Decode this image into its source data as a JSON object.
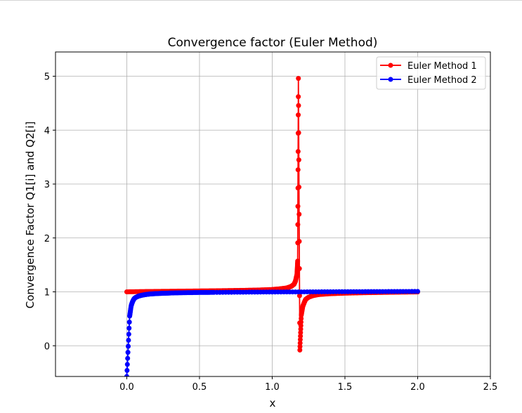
{
  "chart_data": {
    "type": "line",
    "title": "Convergence factor (Euler Method)",
    "xlabel": "x",
    "ylabel": "Convergence Factor Q1[i] and Q2[i]",
    "xlim": [
      -0.49,
      2.5
    ],
    "ylim": [
      -0.57,
      5.45
    ],
    "xticks": [
      0.0,
      0.5,
      1.0,
      1.5,
      2.0,
      2.5
    ],
    "xtick_labels": [
      "0.0",
      "0.5",
      "1.0",
      "1.5",
      "2.0",
      "2.5"
    ],
    "yticks": [
      0,
      1,
      2,
      3,
      4,
      5
    ],
    "ytick_labels": [
      "0",
      "1",
      "2",
      "3",
      "4",
      "5"
    ],
    "grid": true,
    "legend_position": "upper right",
    "marker": "circle",
    "series": [
      {
        "name": "Euler Method 1",
        "color": "#ff0000",
        "x": [
          0.0,
          0.1,
          0.2,
          0.3,
          0.4,
          0.5,
          0.6,
          0.7,
          0.8,
          0.9,
          1.0,
          1.05,
          1.1,
          1.13,
          1.15,
          1.16,
          1.17,
          1.175,
          1.18,
          1.19,
          1.2,
          1.21,
          1.22,
          1.23,
          1.25,
          1.28,
          1.32,
          1.4,
          1.5,
          1.6,
          1.7,
          1.8,
          1.9,
          2.0
        ],
        "y": [
          1.0,
          1.005,
          1.008,
          1.011,
          1.014,
          1.017,
          1.02,
          1.024,
          1.028,
          1.034,
          1.044,
          1.055,
          1.072,
          1.1,
          1.14,
          1.2,
          1.32,
          1.57,
          4.96,
          -0.08,
          0.57,
          0.73,
          0.8,
          0.86,
          0.9,
          0.93,
          0.95,
          0.965,
          0.975,
          0.982,
          0.987,
          0.991,
          0.995,
          0.998
        ]
      },
      {
        "name": "Euler Method 2",
        "color": "#0000ff",
        "x": [
          0.0,
          0.02,
          0.03,
          0.04,
          0.05,
          0.06,
          0.08,
          0.1,
          0.13,
          0.16,
          0.2,
          0.25,
          0.3,
          0.4,
          0.5,
          0.6,
          0.8,
          1.0,
          1.2,
          1.4,
          1.6,
          1.8,
          2.0
        ],
        "y": [
          -0.57,
          0.55,
          0.74,
          0.82,
          0.87,
          0.895,
          0.92,
          0.935,
          0.95,
          0.96,
          0.967,
          0.973,
          0.978,
          0.984,
          0.988,
          0.99,
          0.994,
          0.997,
          0.999,
          1.002,
          1.004,
          1.006,
          1.008
        ]
      }
    ]
  }
}
